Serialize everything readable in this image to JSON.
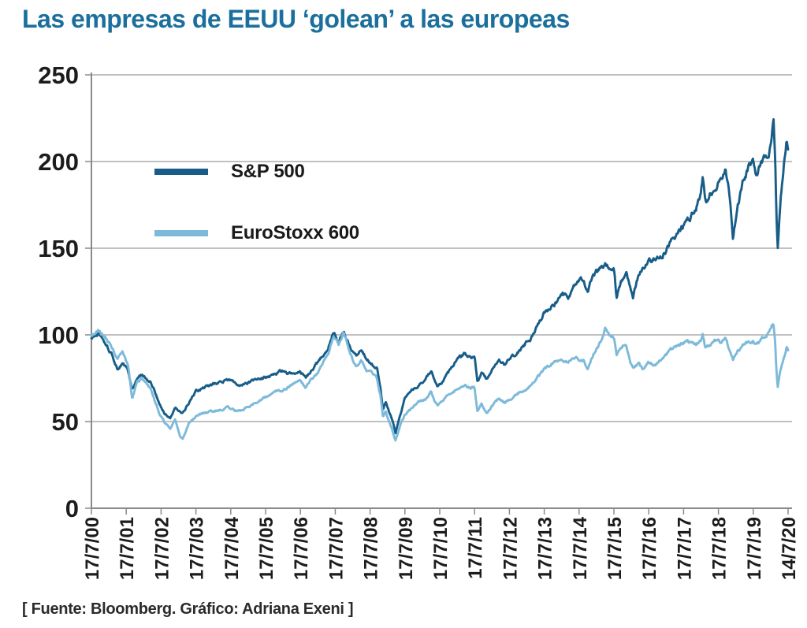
{
  "title": "Las empresas de EEUU ‘golean’ a las europeas",
  "source": "[ Fuente: Bloomberg. Gráfico: Adriana Exeni ]",
  "colors": {
    "title": "#1a6f9c",
    "sp500": "#175d88",
    "eurostoxx": "#7dbada",
    "axis": "#8a8a8a",
    "grid": "#9c9c9c",
    "tick_text": "#1c1c1c"
  },
  "chart_data": {
    "type": "line",
    "title": "Las empresas de EEUU ‘golean’ a las europeas",
    "xlabel": "",
    "ylabel": "",
    "ylim": [
      0,
      250
    ],
    "y_ticks": [
      0,
      50,
      100,
      150,
      200,
      250
    ],
    "x_tick_labels": [
      "17/7/00",
      "17/7/01",
      "17/7/02",
      "17/7/03",
      "17/7/04",
      "17/7/05",
      "17/7/06",
      "17/7/07",
      "17/7/08",
      "17/7/09",
      "17/7/10",
      "17/7/11",
      "17/7/12",
      "17/7/13",
      "17/7/14",
      "17/7/15",
      "17/7/16",
      "17/7/17",
      "17/7/18",
      "17/7/19",
      "14/7/20"
    ],
    "x_unit": "years_after_17_7_2000",
    "x_range_years": [
      0,
      20
    ],
    "grid": true,
    "legend_position": "top-left-inside",
    "series": [
      {
        "name": "S&P 500",
        "color": "#175d88",
        "points": [
          [
            0,
            98
          ],
          [
            0.2,
            101
          ],
          [
            0.45,
            93
          ],
          [
            0.6,
            88
          ],
          [
            0.75,
            80
          ],
          [
            0.9,
            84
          ],
          [
            1.05,
            79
          ],
          [
            1.17,
            68
          ],
          [
            1.3,
            74
          ],
          [
            1.45,
            77
          ],
          [
            1.7,
            73
          ],
          [
            1.95,
            60
          ],
          [
            2.1,
            55
          ],
          [
            2.26,
            52
          ],
          [
            2.4,
            58
          ],
          [
            2.6,
            55
          ],
          [
            2.8,
            61
          ],
          [
            3.0,
            67
          ],
          [
            3.3,
            70
          ],
          [
            3.6,
            72
          ],
          [
            3.9,
            74
          ],
          [
            4.1,
            73
          ],
          [
            4.3,
            71
          ],
          [
            4.6,
            73
          ],
          [
            4.9,
            75
          ],
          [
            5.2,
            77
          ],
          [
            5.5,
            79
          ],
          [
            5.8,
            77
          ],
          [
            6.0,
            78
          ],
          [
            6.15,
            75
          ],
          [
            6.3,
            79
          ],
          [
            6.5,
            84
          ],
          [
            6.8,
            93
          ],
          [
            6.95,
            102
          ],
          [
            7.1,
            96
          ],
          [
            7.25,
            103
          ],
          [
            7.45,
            92
          ],
          [
            7.6,
            88
          ],
          [
            7.75,
            93
          ],
          [
            7.9,
            86
          ],
          [
            8.05,
            83
          ],
          [
            8.2,
            81
          ],
          [
            8.3,
            70
          ],
          [
            8.37,
            57
          ],
          [
            8.45,
            62
          ],
          [
            8.55,
            56
          ],
          [
            8.65,
            50
          ],
          [
            8.73,
            43
          ],
          [
            8.85,
            53
          ],
          [
            9.0,
            63
          ],
          [
            9.2,
            68
          ],
          [
            9.4,
            71
          ],
          [
            9.6,
            75
          ],
          [
            9.75,
            79
          ],
          [
            9.85,
            74
          ],
          [
            9.95,
            71
          ],
          [
            10.1,
            74
          ],
          [
            10.3,
            80
          ],
          [
            10.5,
            85
          ],
          [
            10.7,
            89
          ],
          [
            10.85,
            87
          ],
          [
            11.0,
            88
          ],
          [
            11.08,
            73
          ],
          [
            11.2,
            78
          ],
          [
            11.35,
            74
          ],
          [
            11.5,
            80
          ],
          [
            11.7,
            86
          ],
          [
            11.85,
            83
          ],
          [
            12.0,
            87
          ],
          [
            12.2,
            90
          ],
          [
            12.4,
            94
          ],
          [
            12.6,
            98
          ],
          [
            12.8,
            105
          ],
          [
            13.0,
            113
          ],
          [
            13.2,
            116
          ],
          [
            13.35,
            119
          ],
          [
            13.5,
            123
          ],
          [
            13.7,
            122
          ],
          [
            13.9,
            129
          ],
          [
            14.1,
            132
          ],
          [
            14.25,
            126
          ],
          [
            14.4,
            136
          ],
          [
            14.6,
            138
          ],
          [
            14.75,
            140
          ],
          [
            14.9,
            139
          ],
          [
            15.0,
            139
          ],
          [
            15.08,
            121
          ],
          [
            15.2,
            131
          ],
          [
            15.35,
            136
          ],
          [
            15.45,
            127
          ],
          [
            15.55,
            122
          ],
          [
            15.7,
            134
          ],
          [
            15.85,
            139
          ],
          [
            16.0,
            142
          ],
          [
            16.2,
            144
          ],
          [
            16.4,
            147
          ],
          [
            16.6,
            153
          ],
          [
            16.8,
            158
          ],
          [
            17.0,
            163
          ],
          [
            17.2,
            168
          ],
          [
            17.35,
            173
          ],
          [
            17.5,
            181
          ],
          [
            17.55,
            190
          ],
          [
            17.62,
            175
          ],
          [
            17.75,
            180
          ],
          [
            17.9,
            184
          ],
          [
            18.05,
            190
          ],
          [
            18.2,
            195
          ],
          [
            18.3,
            185
          ],
          [
            18.42,
            157
          ],
          [
            18.55,
            175
          ],
          [
            18.7,
            187
          ],
          [
            18.85,
            196
          ],
          [
            19.0,
            198
          ],
          [
            19.08,
            190
          ],
          [
            19.2,
            197
          ],
          [
            19.35,
            203
          ],
          [
            19.45,
            206
          ],
          [
            19.58,
            224
          ],
          [
            19.63,
            200
          ],
          [
            19.66,
            172
          ],
          [
            19.7,
            148
          ],
          [
            19.78,
            178
          ],
          [
            19.85,
            192
          ],
          [
            19.92,
            205
          ],
          [
            19.96,
            213
          ],
          [
            20,
            209
          ]
        ]
      },
      {
        "name": "EuroStoxx 600",
        "color": "#7dbada",
        "points": [
          [
            0,
            100
          ],
          [
            0.2,
            103
          ],
          [
            0.45,
            97
          ],
          [
            0.6,
            93
          ],
          [
            0.75,
            87
          ],
          [
            0.9,
            90
          ],
          [
            1.05,
            82
          ],
          [
            1.17,
            62
          ],
          [
            1.3,
            72
          ],
          [
            1.45,
            75
          ],
          [
            1.7,
            69
          ],
          [
            1.95,
            54
          ],
          [
            2.1,
            49
          ],
          [
            2.26,
            46
          ],
          [
            2.4,
            51
          ],
          [
            2.55,
            41
          ],
          [
            2.62,
            40
          ],
          [
            2.8,
            49
          ],
          [
            3.0,
            53
          ],
          [
            3.3,
            55
          ],
          [
            3.6,
            56
          ],
          [
            3.9,
            58
          ],
          [
            4.1,
            57
          ],
          [
            4.3,
            56
          ],
          [
            4.6,
            60
          ],
          [
            4.9,
            63
          ],
          [
            5.2,
            66
          ],
          [
            5.5,
            68
          ],
          [
            5.8,
            72
          ],
          [
            6.0,
            74
          ],
          [
            6.15,
            69
          ],
          [
            6.3,
            74
          ],
          [
            6.5,
            79
          ],
          [
            6.8,
            90
          ],
          [
            6.95,
            100
          ],
          [
            7.1,
            95
          ],
          [
            7.25,
            101
          ],
          [
            7.45,
            88
          ],
          [
            7.6,
            81
          ],
          [
            7.75,
            85
          ],
          [
            7.9,
            80
          ],
          [
            8.05,
            78
          ],
          [
            8.2,
            75
          ],
          [
            8.3,
            65
          ],
          [
            8.37,
            52
          ],
          [
            8.45,
            56
          ],
          [
            8.55,
            50
          ],
          [
            8.65,
            45
          ],
          [
            8.73,
            39
          ],
          [
            8.85,
            47
          ],
          [
            9.0,
            54
          ],
          [
            9.2,
            58
          ],
          [
            9.4,
            61
          ],
          [
            9.6,
            63
          ],
          [
            9.75,
            67
          ],
          [
            9.85,
            62
          ],
          [
            9.95,
            60
          ],
          [
            10.1,
            63
          ],
          [
            10.3,
            66
          ],
          [
            10.5,
            69
          ],
          [
            10.7,
            71
          ],
          [
            10.85,
            69
          ],
          [
            11.0,
            70
          ],
          [
            11.08,
            56
          ],
          [
            11.2,
            60
          ],
          [
            11.35,
            55
          ],
          [
            11.5,
            59
          ],
          [
            11.7,
            63
          ],
          [
            11.85,
            61
          ],
          [
            12.0,
            63
          ],
          [
            12.2,
            66
          ],
          [
            12.4,
            68
          ],
          [
            12.6,
            71
          ],
          [
            12.8,
            76
          ],
          [
            13.0,
            80
          ],
          [
            13.2,
            83
          ],
          [
            13.35,
            84
          ],
          [
            13.5,
            86
          ],
          [
            13.7,
            84
          ],
          [
            13.9,
            87
          ],
          [
            14.1,
            86
          ],
          [
            14.25,
            81
          ],
          [
            14.4,
            88
          ],
          [
            14.6,
            95
          ],
          [
            14.75,
            103
          ],
          [
            14.85,
            100
          ],
          [
            15.0,
            98
          ],
          [
            15.08,
            88
          ],
          [
            15.2,
            93
          ],
          [
            15.35,
            95
          ],
          [
            15.45,
            86
          ],
          [
            15.55,
            81
          ],
          [
            15.7,
            83
          ],
          [
            15.85,
            80
          ],
          [
            16.0,
            84
          ],
          [
            16.2,
            83
          ],
          [
            16.4,
            87
          ],
          [
            16.6,
            91
          ],
          [
            16.8,
            94
          ],
          [
            17.0,
            95
          ],
          [
            17.2,
            96
          ],
          [
            17.35,
            95
          ],
          [
            17.5,
            97
          ],
          [
            17.55,
            100
          ],
          [
            17.62,
            93
          ],
          [
            17.75,
            95
          ],
          [
            17.9,
            97
          ],
          [
            18.05,
            96
          ],
          [
            18.2,
            97
          ],
          [
            18.3,
            92
          ],
          [
            18.42,
            85
          ],
          [
            18.55,
            90
          ],
          [
            18.7,
            94
          ],
          [
            18.85,
            96
          ],
          [
            19.0,
            97
          ],
          [
            19.08,
            94
          ],
          [
            19.2,
            97
          ],
          [
            19.35,
            100
          ],
          [
            19.45,
            101
          ],
          [
            19.58,
            107
          ],
          [
            19.63,
            96
          ],
          [
            19.66,
            82
          ],
          [
            19.7,
            70
          ],
          [
            19.78,
            80
          ],
          [
            19.85,
            86
          ],
          [
            19.92,
            89
          ],
          [
            19.96,
            93
          ],
          [
            20,
            91
          ]
        ]
      }
    ]
  }
}
